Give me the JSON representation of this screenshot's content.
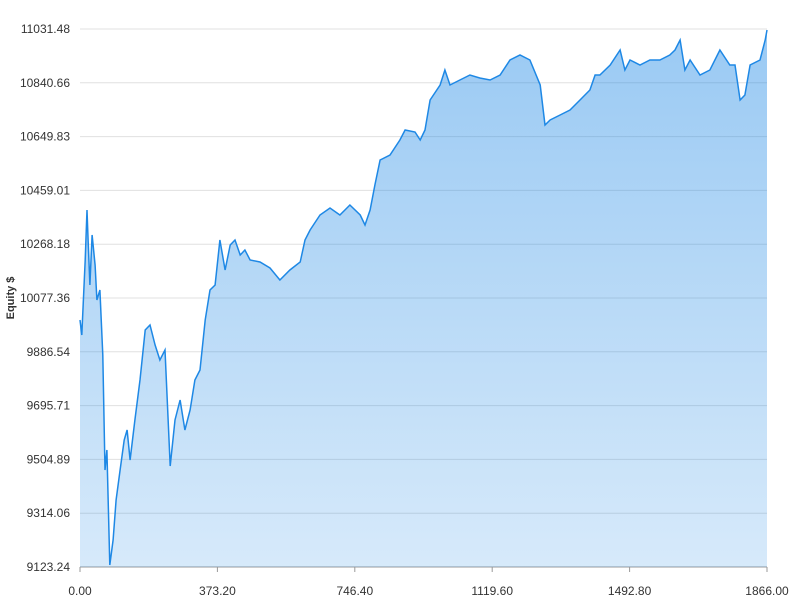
{
  "chart_data": {
    "type": "area",
    "y_label": "Equity $",
    "color": "#1e88e5",
    "grid": true,
    "x": [
      0,
      5,
      14,
      19,
      22,
      27,
      33,
      41,
      46,
      54,
      62,
      68,
      73,
      81,
      90,
      98,
      109,
      120,
      128,
      136,
      149,
      163,
      177,
      190,
      204,
      217,
      231,
      245,
      258,
      272,
      285,
      299,
      312,
      326,
      340,
      353,
      367,
      380,
      394,
      408,
      421,
      435,
      448,
      462,
      489,
      516,
      543,
      570,
      598,
      611,
      625,
      652,
      679,
      706,
      733,
      761,
      774,
      788,
      801,
      815,
      842,
      869,
      883,
      910,
      924,
      937,
      951,
      978,
      991,
      1005,
      1032,
      1059,
      1086,
      1114,
      1141,
      1168,
      1195,
      1222,
      1250,
      1263,
      1277,
      1304,
      1331,
      1358,
      1385,
      1399,
      1412,
      1440,
      1467,
      1480,
      1494,
      1521,
      1548,
      1575,
      1602,
      1616,
      1630,
      1643,
      1657,
      1684,
      1711,
      1738,
      1765,
      1779,
      1793,
      1806,
      1820,
      1847,
      1861,
      1866
    ],
    "values": [
      9999.3,
      9946.1,
      10212.1,
      10389.5,
      10283.1,
      10123.5,
      10300.8,
      10194.4,
      10070.2,
      10105.7,
      9875.2,
      9467.3,
      9538.2,
      9130.3,
      9219.0,
      9360.8,
      9467.3,
      9573.7,
      9609.1,
      9502.7,
      9644.6,
      9786.5,
      9963.8,
      9981.6,
      9910.6,
      9857.4,
      9892.9,
      9481.5,
      9644.6,
      9715.5,
      9609.1,
      9680.1,
      9786.5,
      9822.0,
      9999.3,
      10105.7,
      10123.5,
      10283.1,
      10176.7,
      10265.3,
      10283.1,
      10229.9,
      10247.6,
      10212.1,
      10205.0,
      10183.8,
      10141.2,
      10176.7,
      10205.0,
      10283.1,
      10318.5,
      10371.7,
      10396.6,
      10371.7,
      10407.2,
      10371.7,
      10336.3,
      10389.5,
      10478.2,
      10566.8,
      10584.6,
      10637.8,
      10673.2,
      10666.1,
      10637.8,
      10673.2,
      10779.6,
      10832.9,
      10886.1,
      10832.9,
      10850.6,
      10868.3,
      10857.7,
      10850.6,
      10868.3,
      10921.5,
      10939.3,
      10921.5,
      10832.9,
      10691.0,
      10708.7,
      10726.4,
      10744.2,
      10779.6,
      10815.1,
      10868.3,
      10868.3,
      10903.8,
      10957.0,
      10886.1,
      10921.5,
      10903.8,
      10921.5,
      10921.5,
      10939.3,
      10957.0,
      10992.5,
      10886.1,
      10921.5,
      10868.3,
      10886.1,
      10957.0,
      10903.8,
      10903.8,
      10779.6,
      10797.4,
      10903.8,
      10921.5,
      10992.5,
      11027.9
    ],
    "xlim": [
      0,
      1866
    ],
    "ylim": [
      9123.24,
      11031.48
    ],
    "xticks": [
      {
        "value": 0,
        "label": "0.00"
      },
      {
        "value": 373.2,
        "label": "373.20"
      },
      {
        "value": 746.4,
        "label": "746.40"
      },
      {
        "value": 1119.6,
        "label": "1119.60"
      },
      {
        "value": 1492.8,
        "label": "1492.80"
      },
      {
        "value": 1866,
        "label": "1866.00"
      }
    ],
    "yticks": [
      9123.24,
      9314.06,
      9504.89,
      9695.71,
      9886.54,
      10077.36,
      10268.18,
      10459.01,
      10649.83,
      10840.66,
      11031.48
    ]
  }
}
